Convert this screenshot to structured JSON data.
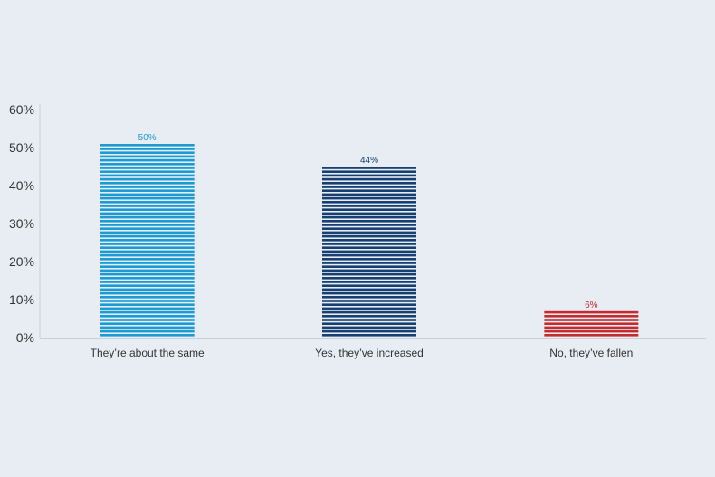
{
  "chart_data": {
    "type": "bar",
    "categories": [
      "They’re about the same",
      "Yes, they’ve increased",
      "No, they’ve fallen"
    ],
    "values": [
      50,
      44,
      6
    ],
    "data_labels": [
      "50%",
      "44%",
      "6%"
    ],
    "colors": [
      "#1a9bd3",
      "#163f72",
      "#c52a2e"
    ],
    "title": "",
    "xlabel": "",
    "ylabel": "",
    "ylim": [
      0,
      60
    ],
    "yticks": [
      0,
      10,
      20,
      30,
      40,
      50,
      60
    ],
    "ytick_labels": [
      "0%",
      "10%",
      "20%",
      "30%",
      "40%",
      "50%",
      "60%"
    ],
    "grid": false,
    "bar_style": "horizontal-stripes"
  }
}
